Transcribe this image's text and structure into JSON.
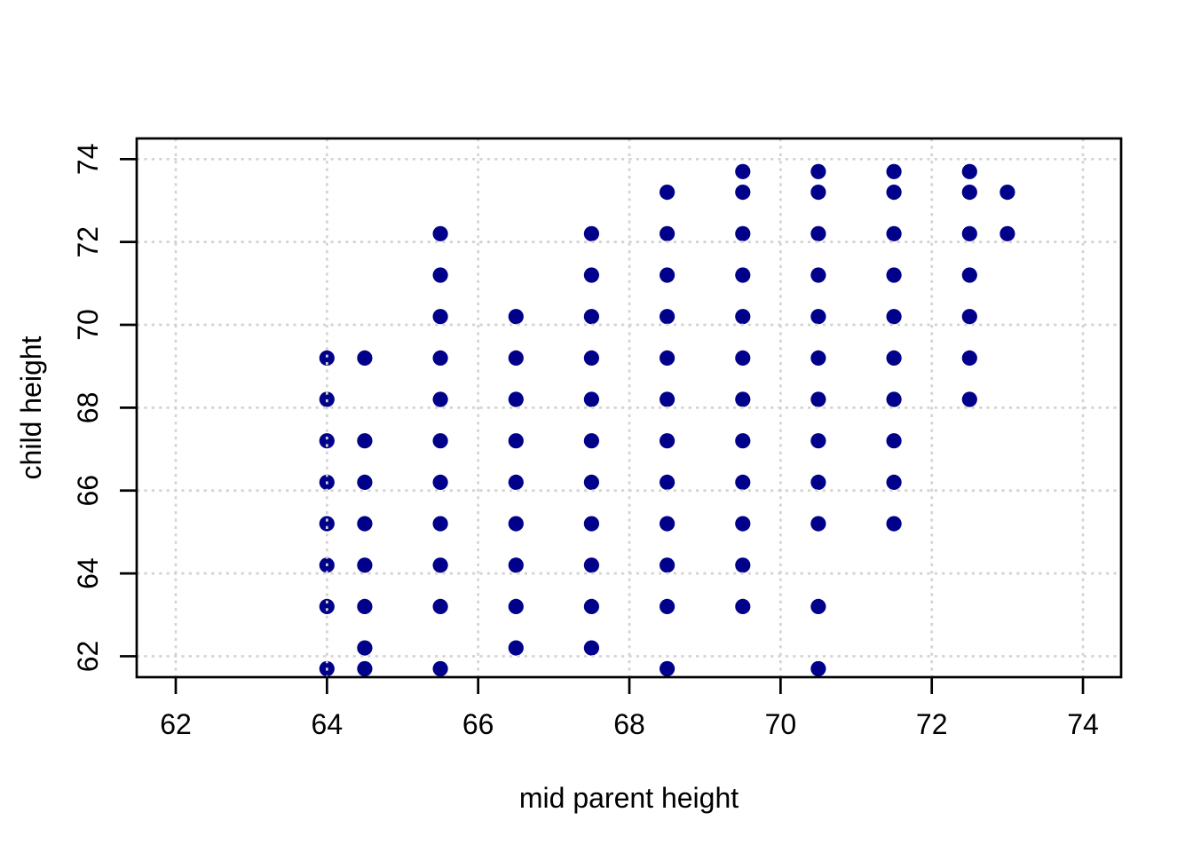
{
  "chart_data": {
    "type": "scatter",
    "title": "",
    "xlabel": "mid parent height",
    "ylabel": "child height",
    "xlim": [
      61.5,
      74.5
    ],
    "ylim": [
      61.5,
      74.5
    ],
    "x_ticks": [
      62,
      64,
      66,
      68,
      70,
      72,
      74
    ],
    "y_ticks": [
      62,
      64,
      66,
      68,
      70,
      72,
      74
    ],
    "x_tick_labels": [
      "62",
      "64",
      "66",
      "68",
      "70",
      "72",
      "74"
    ],
    "y_tick_labels": [
      "62",
      "64",
      "66",
      "68",
      "70",
      "72",
      "74"
    ],
    "legend": "none",
    "grid": {
      "show": true,
      "style": "dotted",
      "color": "#D3D3D3",
      "drawn_over_points": true
    },
    "point_color": "#00008B",
    "axis_color": "#000000",
    "background_color": "#ffffff",
    "points": [
      [
        64.0,
        61.7
      ],
      [
        64.0,
        63.2
      ],
      [
        64.0,
        64.2
      ],
      [
        64.0,
        65.2
      ],
      [
        64.0,
        66.2
      ],
      [
        64.0,
        67.2
      ],
      [
        64.0,
        68.2
      ],
      [
        64.0,
        69.2
      ],
      [
        64.5,
        61.7
      ],
      [
        64.5,
        62.2
      ],
      [
        64.5,
        63.2
      ],
      [
        64.5,
        64.2
      ],
      [
        64.5,
        65.2
      ],
      [
        64.5,
        66.2
      ],
      [
        64.5,
        67.2
      ],
      [
        64.5,
        69.2
      ],
      [
        65.5,
        61.7
      ],
      [
        65.5,
        63.2
      ],
      [
        65.5,
        64.2
      ],
      [
        65.5,
        65.2
      ],
      [
        65.5,
        66.2
      ],
      [
        65.5,
        67.2
      ],
      [
        65.5,
        68.2
      ],
      [
        65.5,
        69.2
      ],
      [
        65.5,
        70.2
      ],
      [
        65.5,
        71.2
      ],
      [
        65.5,
        72.2
      ],
      [
        66.5,
        62.2
      ],
      [
        66.5,
        63.2
      ],
      [
        66.5,
        64.2
      ],
      [
        66.5,
        65.2
      ],
      [
        66.5,
        66.2
      ],
      [
        66.5,
        67.2
      ],
      [
        66.5,
        68.2
      ],
      [
        66.5,
        69.2
      ],
      [
        66.5,
        70.2
      ],
      [
        67.5,
        62.2
      ],
      [
        67.5,
        63.2
      ],
      [
        67.5,
        64.2
      ],
      [
        67.5,
        65.2
      ],
      [
        67.5,
        66.2
      ],
      [
        67.5,
        67.2
      ],
      [
        67.5,
        68.2
      ],
      [
        67.5,
        69.2
      ],
      [
        67.5,
        70.2
      ],
      [
        67.5,
        71.2
      ],
      [
        67.5,
        72.2
      ],
      [
        68.5,
        61.7
      ],
      [
        68.5,
        63.2
      ],
      [
        68.5,
        64.2
      ],
      [
        68.5,
        65.2
      ],
      [
        68.5,
        66.2
      ],
      [
        68.5,
        67.2
      ],
      [
        68.5,
        68.2
      ],
      [
        68.5,
        69.2
      ],
      [
        68.5,
        70.2
      ],
      [
        68.5,
        71.2
      ],
      [
        68.5,
        72.2
      ],
      [
        68.5,
        73.2
      ],
      [
        69.5,
        63.2
      ],
      [
        69.5,
        64.2
      ],
      [
        69.5,
        65.2
      ],
      [
        69.5,
        66.2
      ],
      [
        69.5,
        67.2
      ],
      [
        69.5,
        68.2
      ],
      [
        69.5,
        69.2
      ],
      [
        69.5,
        70.2
      ],
      [
        69.5,
        71.2
      ],
      [
        69.5,
        72.2
      ],
      [
        69.5,
        73.2
      ],
      [
        69.5,
        73.7
      ],
      [
        70.5,
        61.7
      ],
      [
        70.5,
        63.2
      ],
      [
        70.5,
        65.2
      ],
      [
        70.5,
        66.2
      ],
      [
        70.5,
        67.2
      ],
      [
        70.5,
        68.2
      ],
      [
        70.5,
        69.2
      ],
      [
        70.5,
        70.2
      ],
      [
        70.5,
        71.2
      ],
      [
        70.5,
        72.2
      ],
      [
        70.5,
        73.2
      ],
      [
        70.5,
        73.7
      ],
      [
        71.5,
        65.2
      ],
      [
        71.5,
        66.2
      ],
      [
        71.5,
        67.2
      ],
      [
        71.5,
        68.2
      ],
      [
        71.5,
        69.2
      ],
      [
        71.5,
        70.2
      ],
      [
        71.5,
        71.2
      ],
      [
        71.5,
        72.2
      ],
      [
        71.5,
        73.2
      ],
      [
        71.5,
        73.7
      ],
      [
        72.5,
        68.2
      ],
      [
        72.5,
        69.2
      ],
      [
        72.5,
        70.2
      ],
      [
        72.5,
        71.2
      ],
      [
        72.5,
        72.2
      ],
      [
        72.5,
        73.2
      ],
      [
        72.5,
        73.7
      ],
      [
        73.0,
        72.2
      ],
      [
        73.0,
        73.2
      ]
    ]
  }
}
